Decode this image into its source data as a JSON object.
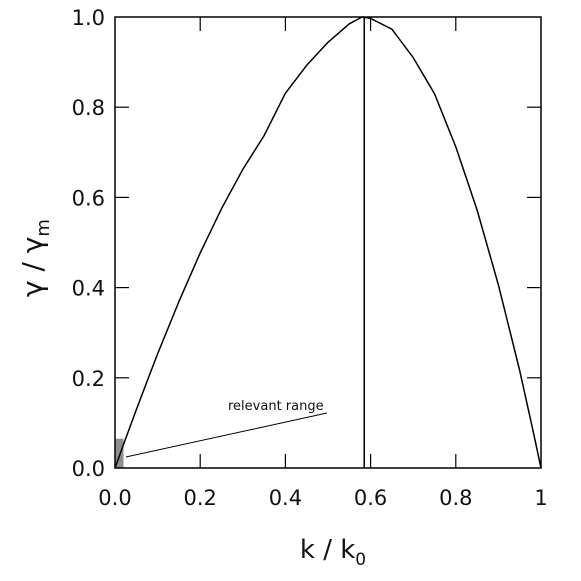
{
  "chart_data": {
    "type": "line",
    "xlabel_main": "k / k",
    "xlabel_sub": "0",
    "ylabel_main": "γ / γ",
    "ylabel_sub": "m",
    "xlim": [
      0,
      1
    ],
    "ylim": [
      0,
      1
    ],
    "x_ticks": [
      0.0,
      0.2,
      0.4,
      0.6,
      0.8,
      1.0
    ],
    "x_tick_labels": [
      "0.0",
      "0.2",
      "0.4",
      "0.6",
      "0.8",
      "1"
    ],
    "y_ticks": [
      0.0,
      0.2,
      0.4,
      0.6,
      0.8,
      1.0
    ],
    "y_tick_labels": [
      "0.0",
      "0.2",
      "0.4",
      "0.6",
      "0.8",
      "1.0"
    ],
    "grid": false,
    "series": [
      {
        "x": [
          0,
          0.02,
          0.05,
          0.08,
          0.1,
          0.15,
          0.2,
          0.25,
          0.3,
          0.35,
          0.4,
          0.45,
          0.5,
          0.55,
          0.58,
          0.6,
          0.65,
          0.7,
          0.75,
          0.8,
          0.85,
          0.9,
          0.95,
          0.98,
          1.0
        ],
        "y": [
          0,
          0.052,
          0.129,
          0.204,
          0.253,
          0.369,
          0.477,
          0.575,
          0.662,
          0.737,
          0.831,
          0.893,
          0.944,
          0.985,
          1.0,
          0.997,
          0.973,
          0.91,
          0.83,
          0.712,
          0.572,
          0.406,
          0.216,
          0.088,
          0.0
        ]
      }
    ],
    "vline_x": 0.585,
    "shaded_region": {
      "x": [
        0,
        0.02
      ],
      "y": [
        0,
        0.065
      ]
    },
    "annotation": {
      "text": "relevant range"
    }
  }
}
